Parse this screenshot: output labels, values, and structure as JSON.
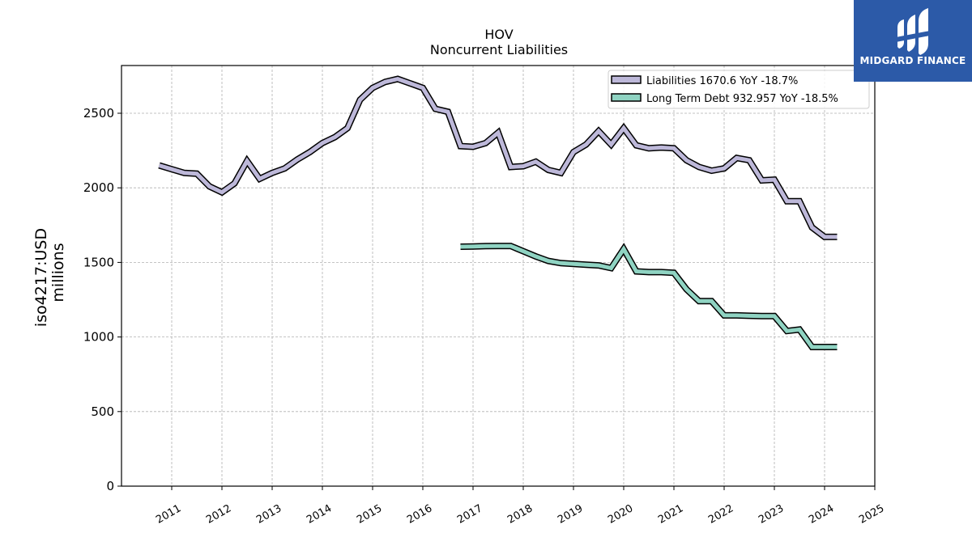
{
  "chart_data": {
    "type": "line",
    "title": "HOV",
    "subtitle": "Noncurrent  Liabilities",
    "ylabel_line1": "iso4217:USD",
    "ylabel_line2": "millions",
    "xlim": [
      2010.0,
      2025.0
    ],
    "ylim": [
      0,
      2820
    ],
    "x_ticks": [
      "2011",
      "2012",
      "2013",
      "2014",
      "2015",
      "2016",
      "2017",
      "2018",
      "2019",
      "2020",
      "2021",
      "2022",
      "2023",
      "2024",
      "2025"
    ],
    "y_ticks": [
      "0",
      "500",
      "1000",
      "1500",
      "2000",
      "2500"
    ],
    "y_tick_values": [
      0,
      500,
      1000,
      1500,
      2000,
      2500
    ],
    "grid": true,
    "legend_position": "upper right",
    "series": [
      {
        "name": "Liabilities",
        "legend_label": "Liabilities  1670.6 YoY -18.7%",
        "color": "#bdb8d9",
        "x": [
          2010.75,
          2011.0,
          2011.25,
          2011.5,
          2011.75,
          2012.0,
          2012.25,
          2012.5,
          2012.75,
          2013.0,
          2013.25,
          2013.5,
          2013.75,
          2014.0,
          2014.25,
          2014.5,
          2014.75,
          2015.0,
          2015.25,
          2015.5,
          2015.75,
          2016.0,
          2016.25,
          2016.5,
          2016.75,
          2017.0,
          2017.25,
          2017.5,
          2017.75,
          2018.0,
          2018.25,
          2018.5,
          2018.75,
          2019.0,
          2019.25,
          2019.5,
          2019.75,
          2020.0,
          2020.25,
          2020.5,
          2020.75,
          2021.0,
          2021.25,
          2021.5,
          2021.75,
          2022.0,
          2022.25,
          2022.5,
          2022.75,
          2023.0,
          2023.25,
          2023.5,
          2023.75,
          2024.0,
          2024.25
        ],
        "values": [
          2150,
          2125,
          2100,
          2095,
          2010,
          1970,
          2030,
          2180,
          2060,
          2100,
          2130,
          2190,
          2240,
          2300,
          2340,
          2400,
          2590,
          2670,
          2710,
          2730,
          2700,
          2670,
          2530,
          2510,
          2280,
          2275,
          2300,
          2370,
          2140,
          2145,
          2175,
          2120,
          2100,
          2240,
          2290,
          2380,
          2290,
          2400,
          2285,
          2265,
          2270,
          2265,
          2185,
          2140,
          2115,
          2130,
          2200,
          2185,
          2050,
          2055,
          1910,
          1910,
          1735,
          1670.6,
          1670.6
        ]
      },
      {
        "name": "Long Term Debt",
        "legend_label": "Long Term Debt  932.957 YoY -18.5%",
        "color": "#8fd3c2",
        "x": [
          2016.75,
          2017.0,
          2017.25,
          2017.5,
          2017.75,
          2018.0,
          2018.25,
          2018.5,
          2018.75,
          2019.0,
          2019.25,
          2019.5,
          2019.75,
          2020.0,
          2020.25,
          2020.5,
          2020.75,
          2021.0,
          2021.25,
          2021.5,
          2021.75,
          2022.0,
          2022.25,
          2022.5,
          2022.75,
          2023.0,
          2023.25,
          2023.5,
          2023.75,
          2024.0,
          2024.25
        ],
        "values": [
          1605,
          1607,
          1609,
          1610,
          1610,
          1575,
          1540,
          1510,
          1495,
          1490,
          1485,
          1480,
          1462,
          1590,
          1440,
          1435,
          1435,
          1430,
          1320,
          1240,
          1240,
          1145,
          1145,
          1142,
          1140,
          1140,
          1040,
          1050,
          932.957,
          932.957,
          932.957
        ]
      }
    ]
  },
  "logo": {
    "text": "MIDGARD FINANCE"
  }
}
